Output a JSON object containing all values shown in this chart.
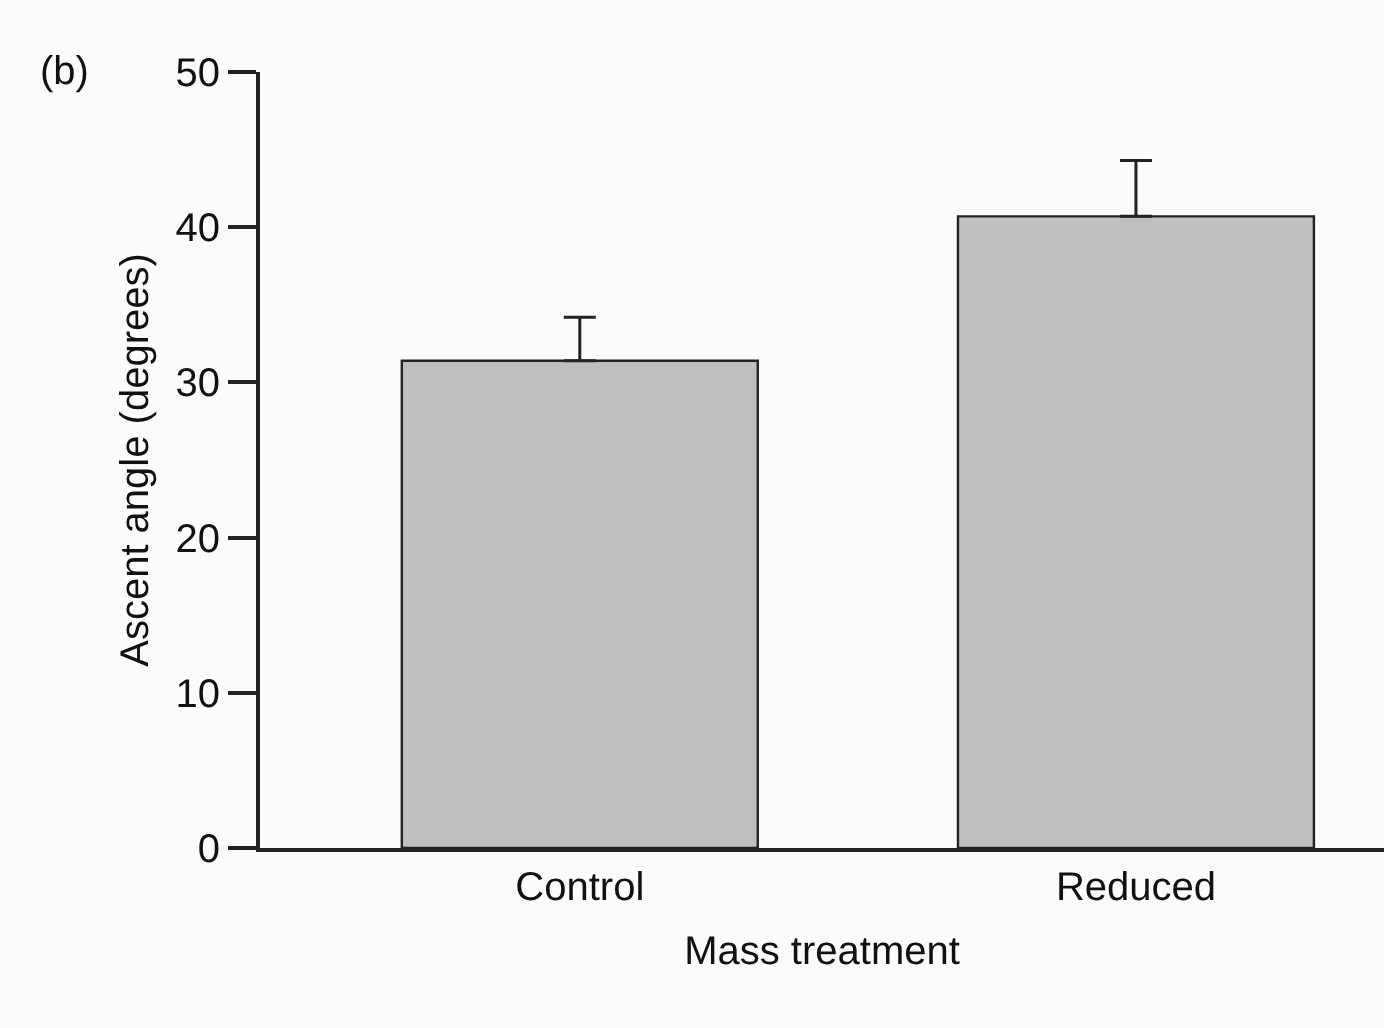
{
  "chart_data": {
    "type": "bar",
    "xlabel": "Mass treatment",
    "ylabel": "Ascent angle (degrees)",
    "annotations": [
      "(b)"
    ],
    "categories": [
      "Control",
      "Reduced"
    ],
    "values": [
      31.4,
      40.7
    ],
    "errors": [
      2.8,
      3.6
    ],
    "color": "#c0c0c0",
    "ylim": [
      0,
      50
    ],
    "yticks": [
      0,
      10,
      20,
      30,
      40,
      50
    ],
    "grid": false
  }
}
